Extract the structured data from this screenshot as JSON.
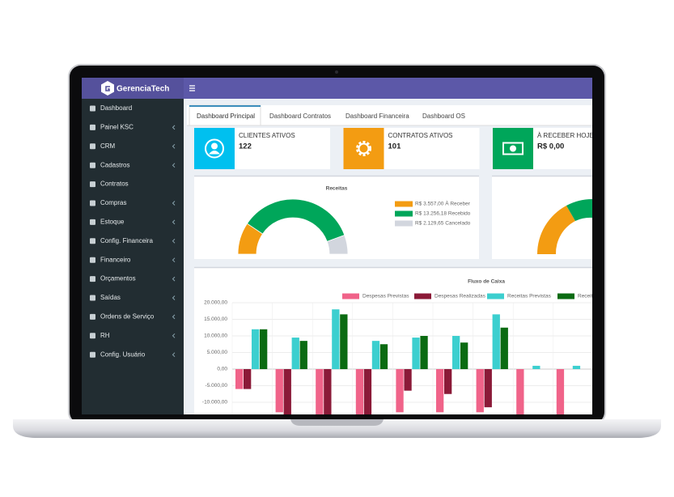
{
  "header": {
    "brand": "GerenciaTech"
  },
  "sidebar": [
    {
      "label": "Dashboard",
      "submenu": false
    },
    {
      "label": "Painel KSC",
      "submenu": true
    },
    {
      "label": "CRM",
      "submenu": true
    },
    {
      "label": "Cadastros",
      "submenu": true
    },
    {
      "label": "Contratos",
      "submenu": false
    },
    {
      "label": "Compras",
      "submenu": true
    },
    {
      "label": "Estoque",
      "submenu": true
    },
    {
      "label": "Config. Financeira",
      "submenu": true
    },
    {
      "label": "Financeiro",
      "submenu": true
    },
    {
      "label": "Orçamentos",
      "submenu": true
    },
    {
      "label": "Saídas",
      "submenu": true
    },
    {
      "label": "Ordens de Serviço",
      "submenu": true
    },
    {
      "label": "RH",
      "submenu": true
    },
    {
      "label": "Config. Usuário",
      "submenu": true
    }
  ],
  "tabs": [
    "Dashboard Principal",
    "Dashboard Contratos",
    "Dashboard Financeira",
    "Dashboard OS"
  ],
  "cards": [
    {
      "title": "CLIENTES ATIVOS",
      "value": "122",
      "color": "#00c0ef"
    },
    {
      "title": "CONTRATOS ATIVOS",
      "value": "101",
      "color": "#f39c12"
    },
    {
      "title": "À RECEBER HOJE",
      "value": "R$ 0,00",
      "color": "#00a65a"
    }
  ],
  "chart_data": [
    {
      "type": "pie",
      "title": "Receitas",
      "half": true,
      "categories": [
        "R$ 3.557,00 À Receber",
        "R$ 13.256,18 Recebido",
        "R$ 2.129,65 Cancelado"
      ],
      "values": [
        3557.0,
        13256.18,
        2129.65
      ],
      "colors": [
        "#f39c12",
        "#00a65a",
        "#d2d6de"
      ]
    },
    {
      "type": "bar",
      "title": "Fluxo de Caixa",
      "grid": true,
      "categories": [
        null,
        null,
        null,
        null,
        null,
        null,
        null,
        null,
        null
      ],
      "series": [
        {
          "name": "Despesas Previstas",
          "color": "#f06389",
          "values": [
            -6000,
            -13000,
            -14000,
            -14000,
            -13000,
            -13000,
            -13000,
            -14000,
            -14000
          ]
        },
        {
          "name": "Despesas Realizadas",
          "color": "#8b1a38",
          "values": [
            -6000,
            -14000,
            -14000,
            -14000,
            -6500,
            -7500,
            -11500,
            0,
            0
          ]
        },
        {
          "name": "Receitas Previstas",
          "color": "#3ccfcf",
          "values": [
            12000,
            9500,
            18000,
            8500,
            9500,
            10000,
            16500,
            1000,
            1000
          ]
        },
        {
          "name": "Receitas Realizadas",
          "color": "#0b6b12",
          "values": [
            12000,
            8500,
            16500,
            7500,
            10000,
            8000,
            12500,
            0,
            0
          ]
        }
      ],
      "ylim": [
        -15000,
        20000
      ],
      "yticks": [
        {
          "value": 20000,
          "label": "20.000,00"
        },
        {
          "value": 15000,
          "label": "15.000,00"
        },
        {
          "value": 10000,
          "label": "10.000,00"
        },
        {
          "value": 5000,
          "label": "5.000,00"
        },
        {
          "value": 0,
          "label": "0,00"
        },
        {
          "value": -5000,
          "label": "-5.000,00"
        },
        {
          "value": -10000,
          "label": "-10.000,00"
        }
      ]
    }
  ]
}
